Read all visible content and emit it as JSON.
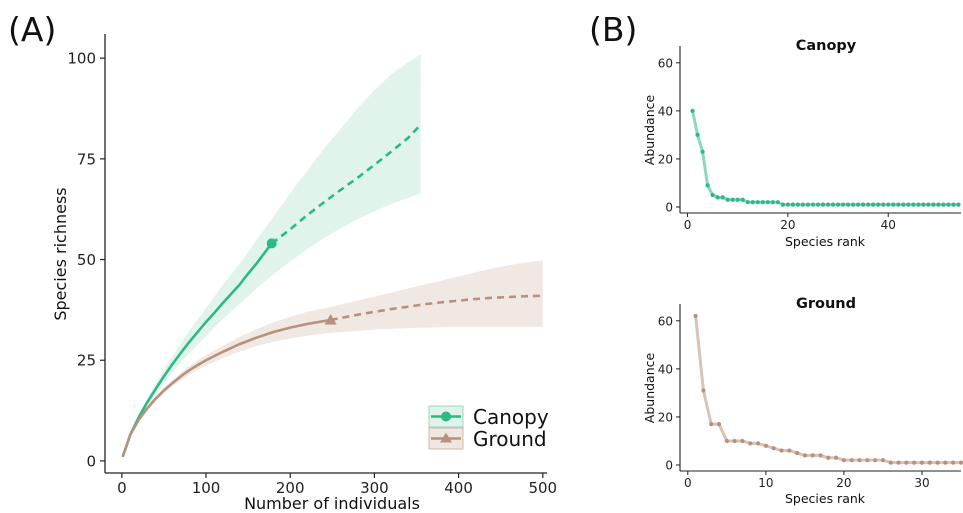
{
  "colors": {
    "canopy": "#2db887",
    "ground": "#b7917b",
    "canopy_band": "#dff3ea",
    "ground_band": "#efe7e2"
  },
  "chart_data": [
    {
      "panel": "(A)",
      "type": "line",
      "xlabel": "Number of individuals",
      "ylabel": "Species richness",
      "xlim": [
        -20,
        505
      ],
      "ylim": [
        -3,
        106
      ],
      "xticks": [
        0,
        100,
        200,
        300,
        400,
        500
      ],
      "yticks": [
        0,
        25,
        50,
        75,
        100
      ],
      "legend_position": "bottom-right",
      "series": [
        {
          "name": "Canopy",
          "color": "canopy",
          "band_color": "canopy_band",
          "marker": "circle",
          "observed": {
            "x": 178,
            "y": 54
          },
          "interpolated": [
            [
              1,
              1
            ],
            [
              10,
              6.5
            ],
            [
              20,
              10.8
            ],
            [
              30,
              14.5
            ],
            [
              40,
              17.8
            ],
            [
              50,
              21
            ],
            [
              60,
              24
            ],
            [
              70,
              26.8
            ],
            [
              80,
              29.5
            ],
            [
              90,
              32
            ],
            [
              100,
              34.5
            ],
            [
              110,
              36.8
            ],
            [
              120,
              39.2
            ],
            [
              130,
              41.5
            ],
            [
              140,
              43.8
            ],
            [
              150,
              46.5
            ],
            [
              160,
              49
            ],
            [
              170,
              51.8
            ],
            [
              178,
              54
            ]
          ],
          "extrapolated": [
            [
              178,
              54
            ],
            [
              200,
              57.5
            ],
            [
              220,
              61
            ],
            [
              240,
              64.2
            ],
            [
              260,
              67.3
            ],
            [
              280,
              70.3
            ],
            [
              300,
              73.5
            ],
            [
              320,
              76.8
            ],
            [
              340,
              80.2
            ],
            [
              355,
              83.5
            ]
          ],
          "ci_x": [
            1,
            10,
            20,
            30,
            40,
            50,
            60,
            80,
            100,
            120,
            140,
            160,
            178,
            200,
            220,
            240,
            260,
            280,
            300,
            320,
            340,
            355
          ],
          "ci_lower": [
            1,
            6.2,
            10.2,
            13.5,
            16.5,
            19.3,
            22,
            26.7,
            31,
            35.3,
            39,
            42.8,
            46,
            49.5,
            52.5,
            55.3,
            57.8,
            60,
            62,
            63.8,
            65.3,
            66.5
          ],
          "ci_upper": [
            1,
            6.8,
            11.5,
            15.5,
            19,
            22.7,
            26,
            32.3,
            38,
            43.7,
            49,
            54.8,
            60,
            66.5,
            72,
            77.5,
            82.5,
            87.5,
            92,
            96,
            99,
            101
          ]
        },
        {
          "name": "Ground",
          "color": "ground",
          "band_color": "ground_band",
          "marker": "triangle",
          "observed": {
            "x": 248,
            "y": 35
          },
          "interpolated": [
            [
              1,
              1
            ],
            [
              10,
              6.5
            ],
            [
              20,
              10.2
            ],
            [
              30,
              13
            ],
            [
              40,
              15.4
            ],
            [
              50,
              17.5
            ],
            [
              60,
              19.3
            ],
            [
              70,
              21
            ],
            [
              80,
              22.5
            ],
            [
              90,
              23.8
            ],
            [
              100,
              25
            ],
            [
              120,
              27.1
            ],
            [
              140,
              29
            ],
            [
              160,
              30.6
            ],
            [
              180,
              32
            ],
            [
              200,
              33.1
            ],
            [
              220,
              34
            ],
            [
              248,
              35
            ]
          ],
          "extrapolated": [
            [
              248,
              35
            ],
            [
              280,
              36.3
            ],
            [
              300,
              37
            ],
            [
              320,
              37.7
            ],
            [
              340,
              38.3
            ],
            [
              360,
              38.9
            ],
            [
              380,
              39.4
            ],
            [
              400,
              39.8
            ],
            [
              420,
              40.2
            ],
            [
              440,
              40.5
            ],
            [
              460,
              40.7
            ],
            [
              480,
              40.9
            ],
            [
              500,
              41
            ]
          ],
          "ci_x": [
            1,
            10,
            20,
            30,
            40,
            50,
            60,
            80,
            100,
            120,
            140,
            160,
            180,
            200,
            220,
            248,
            280,
            300,
            320,
            340,
            360,
            380,
            400,
            420,
            440,
            460,
            480,
            500
          ],
          "ci_lower": [
            1,
            6.3,
            9.9,
            12.5,
            14.8,
            16.8,
            18.5,
            21.4,
            23.7,
            25.6,
            27.2,
            28.5,
            29.6,
            30.4,
            31.1,
            31.8,
            32.3,
            32.6,
            32.8,
            33,
            33.1,
            33.2,
            33.3,
            33.3,
            33.3,
            33.3,
            33.3,
            33.3
          ],
          "ci_upper": [
            1,
            6.7,
            10.5,
            13.5,
            16,
            18.2,
            20.1,
            23.6,
            26.3,
            28.6,
            30.8,
            32.7,
            34.4,
            35.8,
            37,
            38.2,
            39.8,
            40.8,
            41.8,
            42.8,
            43.8,
            44.8,
            45.8,
            46.8,
            47.8,
            48.6,
            49.3,
            49.8
          ]
        }
      ]
    },
    {
      "panel": "(B)",
      "type": "line",
      "title": "Canopy",
      "xlabel": "Species rank",
      "ylabel": "Abundance",
      "xlim": [
        -1.5,
        54.5
      ],
      "ylim": [
        -2.5,
        67
      ],
      "xticks": [
        0,
        20,
        40
      ],
      "yticks": [
        0,
        20,
        40,
        60
      ],
      "color": "canopy",
      "x": [
        1,
        2,
        3,
        4,
        5,
        6,
        7,
        8,
        9,
        10,
        11,
        12,
        13,
        14,
        15,
        16,
        17,
        18,
        19,
        20,
        21,
        22,
        23,
        24,
        25,
        26,
        27,
        28,
        29,
        30,
        31,
        32,
        33,
        34,
        35,
        36,
        37,
        38,
        39,
        40,
        41,
        42,
        43,
        44,
        45,
        46,
        47,
        48,
        49,
        50,
        51,
        52,
        53,
        54
      ],
      "values": [
        40,
        30,
        23,
        9,
        5,
        4,
        4,
        3,
        3,
        3,
        3,
        2,
        2,
        2,
        2,
        2,
        2,
        2,
        1,
        1,
        1,
        1,
        1,
        1,
        1,
        1,
        1,
        1,
        1,
        1,
        1,
        1,
        1,
        1,
        1,
        1,
        1,
        1,
        1,
        1,
        1,
        1,
        1,
        1,
        1,
        1,
        1,
        1,
        1,
        1,
        1,
        1,
        1,
        1
      ]
    },
    {
      "type": "line",
      "title": "Ground",
      "xlabel": "Species rank",
      "ylabel": "Abundance",
      "xlim": [
        -1,
        35
      ],
      "ylim": [
        -2.5,
        67
      ],
      "xticks": [
        0,
        10,
        20,
        30
      ],
      "yticks": [
        0,
        20,
        40,
        60
      ],
      "color": "ground",
      "x": [
        1,
        2,
        3,
        4,
        5,
        6,
        7,
        8,
        9,
        10,
        11,
        12,
        13,
        14,
        15,
        16,
        17,
        18,
        19,
        20,
        21,
        22,
        23,
        24,
        25,
        26,
        27,
        28,
        29,
        30,
        31,
        32,
        33,
        34,
        35
      ],
      "values": [
        62,
        31,
        17,
        17,
        10,
        10,
        10,
        9,
        9,
        8,
        7,
        6,
        6,
        5,
        4,
        4,
        4,
        3,
        3,
        2,
        2,
        2,
        2,
        2,
        2,
        1,
        1,
        1,
        1,
        1,
        1,
        1,
        1,
        1,
        1
      ]
    }
  ]
}
